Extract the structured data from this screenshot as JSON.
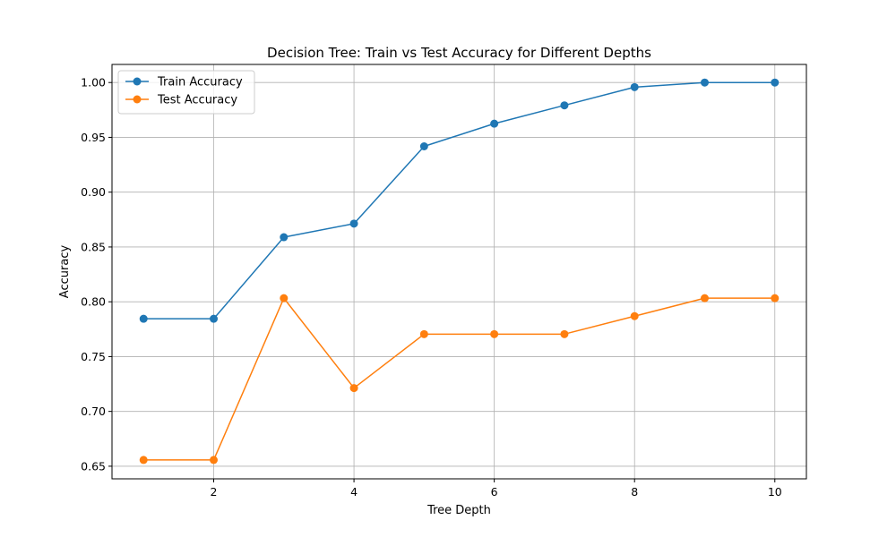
{
  "chart_data": {
    "type": "line",
    "title": "Decision Tree: Train vs Test Accuracy for Different Depths",
    "xlabel": "Tree Depth",
    "ylabel": "Accuracy",
    "x": [
      1,
      2,
      3,
      4,
      5,
      6,
      7,
      8,
      9,
      10
    ],
    "xlim": [
      0.55,
      10.45
    ],
    "ylim": [
      0.6385,
      1.0165
    ],
    "xticks": [
      2,
      4,
      6,
      8,
      10
    ],
    "xtick_labels": [
      "2",
      "4",
      "6",
      "8",
      "10"
    ],
    "yticks": [
      0.65,
      0.7,
      0.75,
      0.8,
      0.85,
      0.9,
      0.95,
      1.0
    ],
    "ytick_labels": [
      "0.65",
      "0.70",
      "0.75",
      "0.80",
      "0.85",
      "0.90",
      "0.95",
      "1.00"
    ],
    "grid": true,
    "legend_position": "upper-left",
    "series": [
      {
        "name": "Train Accuracy",
        "color": "#1f77b4",
        "marker": "circle",
        "values": [
          0.7845,
          0.7845,
          0.8589,
          0.8713,
          0.9418,
          0.9625,
          0.9792,
          0.9958,
          1.0,
          1.0
        ]
      },
      {
        "name": "Test Accuracy",
        "color": "#ff7f0e",
        "marker": "circle",
        "values": [
          0.6557,
          0.6557,
          0.8033,
          0.7213,
          0.7705,
          0.7705,
          0.7705,
          0.7869,
          0.8033,
          0.8033
        ]
      }
    ]
  }
}
